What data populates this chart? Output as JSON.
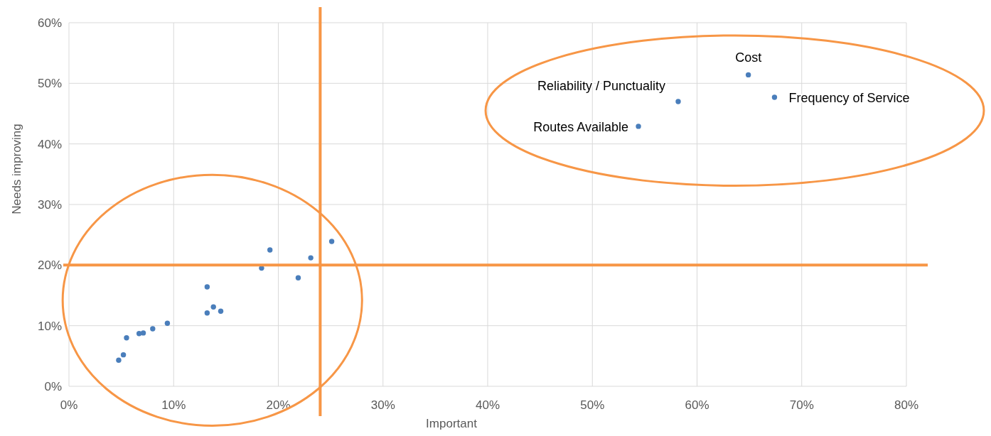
{
  "chart_data": {
    "type": "scatter",
    "xlabel": "Important",
    "ylabel": "Needs improving",
    "series": [
      {
        "color": "#4a7ebb",
        "x": [
          4.75,
          5.2,
          5.5,
          6.7,
          7.1,
          8.0,
          9.4,
          13.2,
          13.2,
          13.8,
          14.5,
          18.4,
          19.2,
          21.9,
          23.1,
          25.1,
          54.4,
          58.2,
          64.9,
          67.4
        ],
        "values": [
          4.3,
          5.2,
          8.0,
          8.7,
          8.8,
          9.5,
          10.4,
          16.4,
          12.1,
          13.1,
          12.4,
          19.5,
          22.5,
          17.9,
          21.2,
          23.9,
          42.9,
          47.0,
          51.4,
          47.7
        ]
      }
    ],
    "xlim": [
      0,
      80
    ],
    "ylim": [
      0,
      60
    ],
    "xticks": [
      {
        "value": 0,
        "label": "0%"
      },
      {
        "value": 10,
        "label": "10%"
      },
      {
        "value": 20,
        "label": "20%"
      },
      {
        "value": 30,
        "label": "30%"
      },
      {
        "value": 40,
        "label": "40%"
      },
      {
        "value": 50,
        "label": "50%"
      },
      {
        "value": 60,
        "label": "60%"
      },
      {
        "value": 70,
        "label": "70%"
      },
      {
        "value": 80,
        "label": "80%"
      }
    ],
    "yticks": [
      {
        "value": 0,
        "label": "0%"
      },
      {
        "value": 10,
        "label": "10%"
      },
      {
        "value": 20,
        "label": "20%"
      },
      {
        "value": 30,
        "label": "30%"
      },
      {
        "value": 40,
        "label": "40%"
      },
      {
        "value": 50,
        "label": "50%"
      },
      {
        "value": 60,
        "label": "60%"
      }
    ],
    "annotations": [
      {
        "text": "Cost",
        "x": 64.9,
        "y": 51.4
      },
      {
        "text": "Reliability / Punctuality",
        "x": 58.2,
        "y": 47.0
      },
      {
        "text": "Frequency of Service",
        "x": 67.4,
        "y": 47.7
      },
      {
        "text": "Routes Available",
        "x": 54.4,
        "y": 42.9
      }
    ],
    "ref_lines": [
      {
        "axis": "x",
        "value": 24,
        "color": "#f79646"
      },
      {
        "axis": "y",
        "value": 20,
        "color": "#f79646"
      }
    ],
    "grid": true,
    "marker": "circle"
  }
}
